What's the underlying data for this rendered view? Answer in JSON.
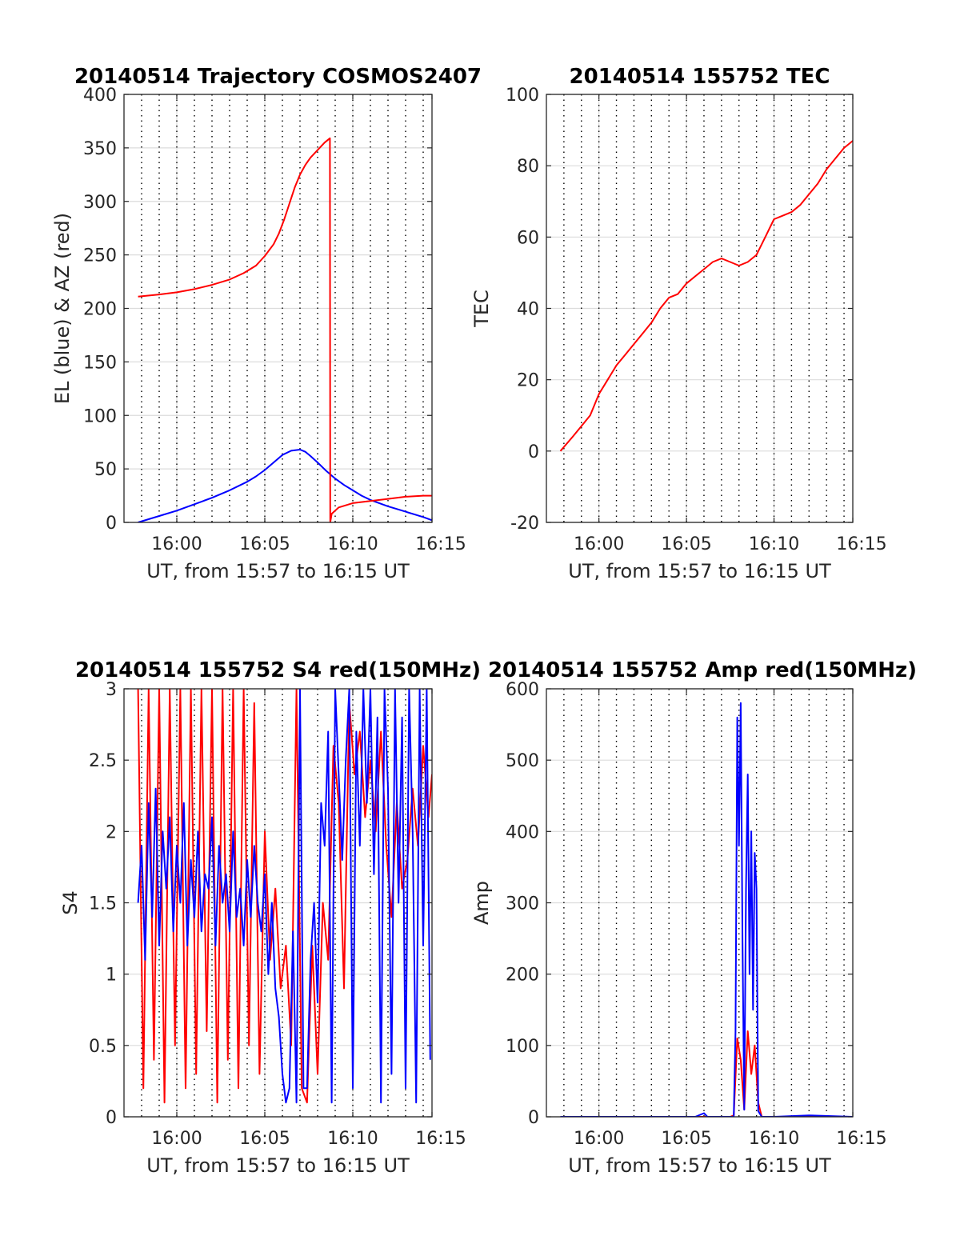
{
  "figure": {
    "background": "#ffffff",
    "axis_color": "#262626",
    "grid_color": "#dcdcdc",
    "minute_marker_color": "#000000"
  },
  "chart_data": [
    {
      "id": "trajectory",
      "type": "line",
      "title": "20140514 Trajectory COSMOS2407",
      "xlabel": "UT, from 15:57 to 16:15 UT",
      "ylabel": "EL (blue) & AZ (red)",
      "xlim": [
        15.0,
        32.5
      ],
      "ylim": [
        0,
        400
      ],
      "xticks": [
        18,
        23,
        28,
        33
      ],
      "xticklabels": [
        "16:00",
        "16:05",
        "16:10",
        "16:15"
      ],
      "yticks": [
        0,
        50,
        100,
        150,
        200,
        250,
        300,
        350,
        400
      ],
      "yticklabels": [
        "0",
        "50",
        "100",
        "150",
        "200",
        "250",
        "300",
        "350",
        "400"
      ],
      "grid": true,
      "minute_markers": true,
      "series": [
        {
          "role": "EL",
          "color": "#0000ff",
          "x": [
            15.8,
            17,
            18,
            19,
            20,
            21,
            22,
            22.5,
            23,
            23.5,
            24,
            24.5,
            25,
            25.3,
            25.6,
            26,
            26.5,
            27,
            27.5,
            28,
            28.5,
            29,
            30,
            31,
            32,
            32.5
          ],
          "y": [
            0,
            6,
            11,
            17,
            23,
            30,
            38,
            43,
            49,
            56,
            63,
            67,
            68,
            66,
            62,
            56,
            48,
            41,
            35,
            30,
            25,
            21,
            15,
            10,
            5,
            2
          ]
        },
        {
          "role": "AZ",
          "color": "#ff0000",
          "x": [
            15.8,
            17,
            18,
            19,
            20,
            21,
            21.8,
            22.5,
            23,
            23.5,
            23.8,
            24.1,
            24.4,
            24.7,
            25,
            25.3,
            25.6,
            26,
            26.4,
            26.7,
            26.72,
            26.8,
            27.2,
            28,
            29,
            30,
            31,
            32,
            32.5
          ],
          "y": [
            211,
            213,
            215,
            218,
            222,
            227,
            233,
            240,
            249,
            260,
            270,
            283,
            298,
            313,
            325,
            334,
            341,
            348,
            355,
            359,
            0,
            8,
            14,
            18,
            20,
            22,
            24,
            25,
            25
          ]
        }
      ]
    },
    {
      "id": "tec",
      "type": "line",
      "title": "20140514 155752 TEC",
      "xlabel": "UT, from 15:57 to 16:15 UT",
      "ylabel": "TEC",
      "xlim": [
        15.0,
        32.5
      ],
      "ylim": [
        -20,
        100
      ],
      "xticks": [
        18,
        23,
        28,
        33
      ],
      "xticklabels": [
        "16:00",
        "16:05",
        "16:10",
        "16:15"
      ],
      "yticks": [
        -20,
        0,
        20,
        40,
        60,
        80,
        100
      ],
      "yticklabels": [
        "-20",
        "0",
        "20",
        "40",
        "60",
        "80",
        "100"
      ],
      "grid": true,
      "minute_markers": true,
      "series": [
        {
          "role": "TEC",
          "color": "#ff0000",
          "x": [
            15.8,
            16.5,
            17.0,
            17.5,
            18.0,
            18.5,
            19.0,
            19.5,
            20.0,
            20.5,
            21.0,
            21.5,
            22.0,
            22.5,
            23.0,
            23.5,
            24.0,
            24.5,
            25.0,
            25.5,
            26.0,
            26.5,
            27.0,
            27.5,
            28.0,
            28.5,
            29.0,
            29.5,
            30.0,
            30.5,
            31.0,
            31.5,
            32.0,
            32.5
          ],
          "y": [
            0,
            4,
            7,
            10,
            16,
            20,
            24,
            27,
            30,
            33,
            36,
            40,
            43,
            44,
            47,
            49,
            51,
            53,
            54,
            53,
            52,
            53,
            55,
            60,
            65,
            66,
            67,
            69,
            72,
            75,
            79,
            82,
            85,
            87
          ]
        }
      ]
    },
    {
      "id": "s4",
      "type": "line",
      "title": "20140514 155752 S4 red(150MHz)",
      "xlabel": "UT, from 15:57 to 16:15 UT",
      "ylabel": "S4",
      "xlim": [
        15.0,
        32.5
      ],
      "ylim": [
        0,
        3
      ],
      "xticks": [
        18,
        23,
        28,
        33
      ],
      "xticklabels": [
        "16:00",
        "16:05",
        "16:10",
        "16:15"
      ],
      "yticks": [
        0,
        0.5,
        1,
        1.5,
        2,
        2.5,
        3
      ],
      "yticklabels": [
        "0",
        "0.5",
        "1",
        "1.5",
        "2",
        "2.5",
        "3"
      ],
      "grid": true,
      "minute_markers": true,
      "series": [
        {
          "role": "red",
          "color": "#ff0000",
          "x": [
            15.8,
            16.1,
            16.4,
            16.7,
            17.0,
            17.3,
            17.6,
            17.9,
            18.2,
            18.5,
            18.8,
            19.1,
            19.4,
            19.7,
            20.0,
            20.3,
            20.6,
            20.9,
            21.2,
            21.5,
            21.8,
            22.1,
            22.4,
            22.7,
            23.0,
            23.3,
            23.6,
            23.9,
            24.2,
            24.5,
            24.8,
            25.1,
            25.4,
            25.7,
            26.0,
            26.3,
            26.6,
            26.9,
            27.2,
            27.5,
            27.8,
            28.1,
            28.4,
            28.7,
            29.0,
            29.3,
            29.6,
            29.9,
            30.2,
            30.5,
            30.8,
            31.1,
            31.4,
            31.7,
            32.0,
            32.3,
            32.5
          ],
          "y": [
            3,
            0.2,
            3,
            0.4,
            3,
            0.1,
            3,
            0.5,
            3,
            0.2,
            3,
            0.3,
            3,
            0.6,
            3,
            0.1,
            3,
            0.4,
            3,
            0.2,
            3,
            0.5,
            2.9,
            0.3,
            2.0,
            1.1,
            1.6,
            0.9,
            1.2,
            0.5,
            3,
            0.2,
            0.1,
            1.2,
            0.3,
            1.5,
            1.1,
            2.6,
            2.2,
            0.9,
            2.9,
            2.4,
            2.7,
            2.1,
            2.5,
            2.0,
            2.7,
            1.9,
            1.4,
            2.2,
            1.6,
            1.8,
            2.3,
            1.9,
            2.6,
            2.1,
            2.4
          ]
        },
        {
          "role": "blue",
          "color": "#0000ff",
          "x": [
            15.8,
            16.0,
            16.2,
            16.4,
            16.6,
            16.8,
            17.0,
            17.2,
            17.4,
            17.6,
            17.8,
            18.0,
            18.2,
            18.4,
            18.6,
            18.8,
            19.0,
            19.2,
            19.4,
            19.6,
            19.8,
            20.0,
            20.2,
            20.4,
            20.6,
            20.8,
            21.0,
            21.2,
            21.4,
            21.6,
            21.8,
            22.0,
            22.2,
            22.4,
            22.6,
            22.8,
            23.0,
            23.2,
            23.4,
            23.6,
            23.8,
            24.0,
            24.2,
            24.4,
            24.6,
            24.8,
            25.0,
            25.2,
            25.4,
            25.6,
            25.8,
            26.0,
            26.2,
            26.4,
            26.6,
            26.8,
            27.0,
            27.2,
            27.4,
            27.6,
            27.8,
            28.0,
            28.2,
            28.4,
            28.6,
            28.8,
            29.0,
            29.2,
            29.4,
            29.6,
            29.8,
            30.0,
            30.2,
            30.4,
            30.6,
            30.8,
            31.0,
            31.2,
            31.4,
            31.6,
            31.8,
            32.0,
            32.2,
            32.4
          ],
          "y": [
            1.5,
            1.9,
            1.1,
            2.2,
            1.4,
            2.3,
            1.2,
            2.0,
            1.6,
            2.1,
            1.3,
            1.9,
            1.5,
            2.2,
            1.2,
            1.8,
            1.4,
            2.0,
            1.3,
            1.7,
            1.6,
            2.1,
            1.2,
            1.9,
            1.5,
            1.7,
            1.3,
            2.0,
            1.4,
            1.6,
            1.2,
            1.8,
            1.4,
            1.9,
            1.5,
            1.3,
            1.7,
            1.0,
            1.5,
            0.9,
            0.7,
            0.3,
            0.1,
            0.2,
            1.3,
            0.1,
            3.0,
            0.2,
            0.2,
            1.1,
            1.5,
            0.8,
            2.2,
            1.9,
            2.7,
            0.1,
            3.0,
            2.4,
            1.8,
            2.5,
            3.0,
            0.2,
            2.7,
            1.9,
            3.0,
            2.2,
            3.0,
            1.7,
            2.8,
            0.1,
            3.0,
            2.3,
            0.3,
            3.0,
            1.5,
            2.8,
            0.2,
            3.0,
            2.0,
            0.1,
            3.0,
            1.2,
            3.0,
            0.4
          ]
        }
      ]
    },
    {
      "id": "amp",
      "type": "line",
      "title": "20140514 155752 Amp red(150MHz)",
      "xlabel": "UT, from 15:57 to 16:15 UT",
      "ylabel": "Amp",
      "xlim": [
        15.0,
        32.5
      ],
      "ylim": [
        0,
        600
      ],
      "xticks": [
        18,
        23,
        28,
        33
      ],
      "xticklabels": [
        "16:00",
        "16:05",
        "16:10",
        "16:15"
      ],
      "yticks": [
        0,
        100,
        200,
        300,
        400,
        500,
        600
      ],
      "yticklabels": [
        "0",
        "100",
        "200",
        "300",
        "400",
        "500",
        "600"
      ],
      "grid": true,
      "minute_markers": true,
      "series": [
        {
          "role": "red",
          "color": "#ff0000",
          "x": [
            15.8,
            20,
            25.5,
            25.7,
            25.9,
            26.1,
            26.3,
            26.5,
            26.7,
            26.9,
            27.1,
            27.3,
            27.5,
            30,
            32.5
          ],
          "y": [
            0,
            0,
            0,
            2,
            110,
            80,
            10,
            120,
            60,
            100,
            20,
            0,
            0,
            0,
            0
          ]
        },
        {
          "role": "blue",
          "color": "#0000ff",
          "x": [
            15.8,
            20,
            23.5,
            24.0,
            24.2,
            25.5,
            25.7,
            25.8,
            25.9,
            26.0,
            26.1,
            26.2,
            26.3,
            26.4,
            26.5,
            26.6,
            26.7,
            26.8,
            26.9,
            27.0,
            27.1,
            27.3,
            28,
            30,
            32.5
          ],
          "y": [
            0,
            0,
            0,
            5,
            0,
            0,
            0,
            120,
            560,
            380,
            580,
            250,
            10,
            320,
            480,
            200,
            400,
            150,
            370,
            320,
            8,
            0,
            0,
            2,
            0
          ]
        }
      ]
    }
  ]
}
